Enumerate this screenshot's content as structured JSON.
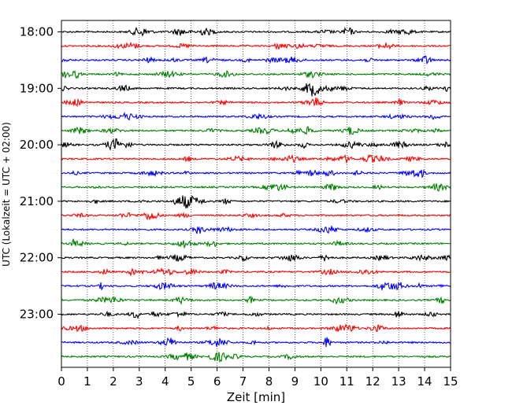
{
  "chart_data": {
    "type": "line",
    "title": "",
    "xlabel": "Zeit  [min]",
    "ylabel": "UTC (Lokalzeit = UTC + 02:00)",
    "xlim": [
      0,
      15
    ],
    "x_ticks": [
      "0",
      "1",
      "2",
      "3",
      "4",
      "5",
      "6",
      "7",
      "8",
      "9",
      "10",
      "11",
      "12",
      "13",
      "14",
      "15"
    ],
    "y_ticks": [
      "18:00",
      "19:00",
      "20:00",
      "21:00",
      "22:00",
      "23:00"
    ],
    "trace_interval_min": 15,
    "grid_x": "dotted vertical lines at every minute",
    "series": [
      {
        "start": "18:00",
        "color": "#000000"
      },
      {
        "start": "18:15",
        "color": "#ff0000"
      },
      {
        "start": "18:30",
        "color": "#0000ff"
      },
      {
        "start": "18:45",
        "color": "#008000"
      },
      {
        "start": "19:00",
        "color": "#000000"
      },
      {
        "start": "19:15",
        "color": "#ff0000"
      },
      {
        "start": "19:30",
        "color": "#0000ff"
      },
      {
        "start": "19:45",
        "color": "#008000"
      },
      {
        "start": "20:00",
        "color": "#000000"
      },
      {
        "start": "20:15",
        "color": "#ff0000"
      },
      {
        "start": "20:30",
        "color": "#0000ff"
      },
      {
        "start": "20:45",
        "color": "#008000"
      },
      {
        "start": "21:00",
        "color": "#000000"
      },
      {
        "start": "21:15",
        "color": "#ff0000"
      },
      {
        "start": "21:30",
        "color": "#0000ff"
      },
      {
        "start": "21:45",
        "color": "#008000"
      },
      {
        "start": "22:00",
        "color": "#000000"
      },
      {
        "start": "22:15",
        "color": "#ff0000"
      },
      {
        "start": "22:30",
        "color": "#0000ff"
      },
      {
        "start": "22:45",
        "color": "#008000"
      },
      {
        "start": "23:00",
        "color": "#000000"
      },
      {
        "start": "23:15",
        "color": "#ff0000"
      },
      {
        "start": "23:30",
        "color": "#0000ff"
      },
      {
        "start": "23:45",
        "color": "#008000"
      }
    ]
  }
}
